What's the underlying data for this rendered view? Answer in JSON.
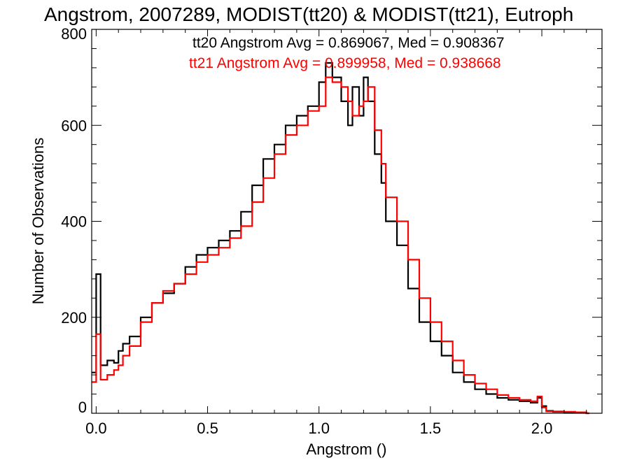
{
  "chart_data": {
    "type": "line",
    "title": "Angstrom, 2007289, MODIST(tt20) & MODIST(tt21), Eutroph",
    "xlabel": "Angstrom ()",
    "ylabel": "Number of Observations",
    "xlim": [
      -0.02,
      2.27
    ],
    "ylim": [
      0,
      800
    ],
    "x_ticks": [
      "0.0",
      "0.5",
      "1.0",
      "1.5",
      "2.0"
    ],
    "y_ticks": [
      "0",
      "200",
      "400",
      "600",
      "800"
    ],
    "grid": false,
    "legend_position": "top-right",
    "annotations": [
      {
        "text": "tt20 Angstrom Avg = 0.869067, Med = 0.908367",
        "color": "#000000"
      },
      {
        "text": "tt21 Angstrom Avg = 0.899958, Med = 0.938668",
        "color": "#ff0000"
      }
    ],
    "series": [
      {
        "name": "tt20",
        "color": "#000000",
        "x": [
          -0.02,
          0.0,
          0.02,
          0.05,
          0.08,
          0.1,
          0.12,
          0.15,
          0.2,
          0.25,
          0.3,
          0.35,
          0.4,
          0.45,
          0.5,
          0.55,
          0.6,
          0.65,
          0.7,
          0.75,
          0.8,
          0.85,
          0.9,
          0.95,
          1.0,
          1.03,
          1.06,
          1.1,
          1.13,
          1.15,
          1.18,
          1.2,
          1.22,
          1.25,
          1.28,
          1.3,
          1.35,
          1.4,
          1.45,
          1.5,
          1.55,
          1.6,
          1.65,
          1.7,
          1.75,
          1.8,
          1.85,
          1.9,
          1.95,
          1.98,
          2.0,
          2.02,
          2.05,
          2.1,
          2.15,
          2.2
        ],
        "y": [
          85,
          290,
          100,
          110,
          105,
          130,
          145,
          160,
          200,
          230,
          250,
          270,
          305,
          330,
          345,
          360,
          380,
          420,
          475,
          530,
          560,
          600,
          620,
          640,
          690,
          730,
          700,
          650,
          600,
          680,
          620,
          700,
          650,
          540,
          480,
          400,
          350,
          260,
          190,
          150,
          120,
          85,
          65,
          50,
          40,
          32,
          28,
          25,
          22,
          32,
          15,
          5,
          3,
          2,
          1,
          0
        ]
      },
      {
        "name": "tt21",
        "color": "#ff0000",
        "x": [
          -0.02,
          0.0,
          0.02,
          0.05,
          0.08,
          0.1,
          0.12,
          0.15,
          0.2,
          0.25,
          0.3,
          0.35,
          0.4,
          0.45,
          0.5,
          0.55,
          0.6,
          0.65,
          0.7,
          0.75,
          0.8,
          0.85,
          0.9,
          0.95,
          1.0,
          1.03,
          1.06,
          1.1,
          1.13,
          1.15,
          1.18,
          1.2,
          1.22,
          1.25,
          1.28,
          1.3,
          1.35,
          1.4,
          1.45,
          1.5,
          1.55,
          1.6,
          1.65,
          1.7,
          1.75,
          1.8,
          1.85,
          1.9,
          1.95,
          1.98,
          2.0,
          2.02,
          2.05,
          2.1,
          2.15,
          2.2
        ],
        "y": [
          65,
          165,
          70,
          80,
          90,
          100,
          120,
          140,
          190,
          230,
          255,
          270,
          290,
          315,
          330,
          345,
          365,
          390,
          440,
          490,
          540,
          580,
          600,
          630,
          640,
          700,
          690,
          680,
          650,
          620,
          640,
          650,
          680,
          590,
          520,
          450,
          400,
          320,
          240,
          190,
          150,
          110,
          80,
          62,
          50,
          38,
          32,
          28,
          25,
          35,
          12,
          4,
          4,
          3,
          2,
          0
        ]
      }
    ]
  }
}
